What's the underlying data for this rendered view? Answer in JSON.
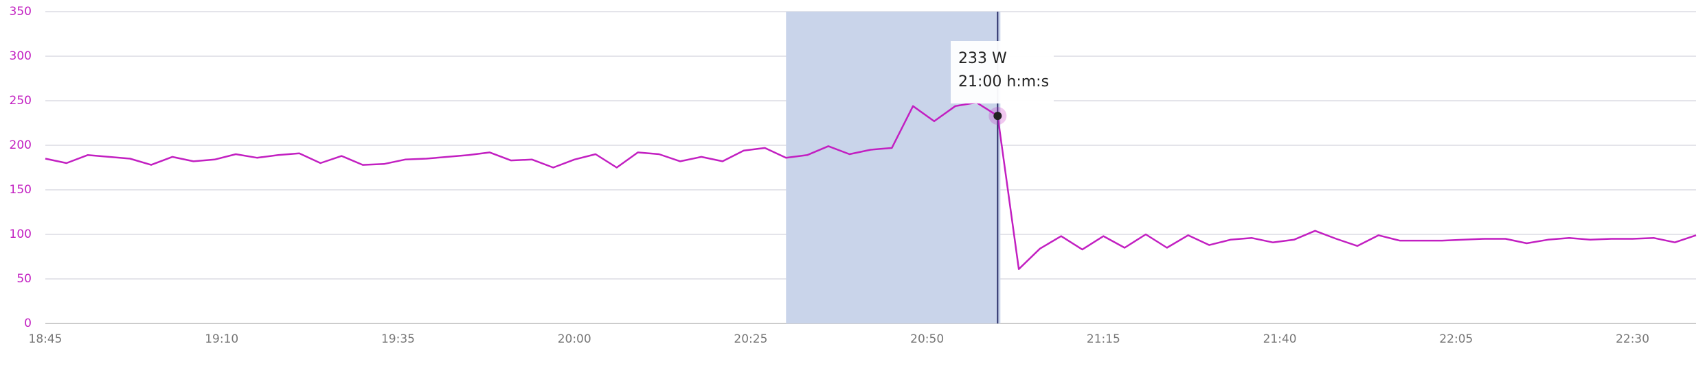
{
  "chart_data": {
    "type": "line",
    "x": [
      "18:45",
      "18:48",
      "18:51",
      "18:54",
      "18:57",
      "19:00",
      "19:03",
      "19:06",
      "19:09",
      "19:12",
      "19:15",
      "19:18",
      "19:21",
      "19:24",
      "19:27",
      "19:30",
      "19:33",
      "19:36",
      "19:39",
      "19:42",
      "19:45",
      "19:48",
      "19:51",
      "19:54",
      "19:57",
      "20:00",
      "20:03",
      "20:06",
      "20:09",
      "20:12",
      "20:15",
      "20:18",
      "20:21",
      "20:24",
      "20:27",
      "20:30",
      "20:33",
      "20:36",
      "20:39",
      "20:42",
      "20:45",
      "20:48",
      "20:51",
      "20:54",
      "20:57",
      "21:00",
      "21:03",
      "21:06",
      "21:09",
      "21:12",
      "21:15",
      "21:18",
      "21:21",
      "21:24",
      "21:27",
      "21:30",
      "21:33",
      "21:36",
      "21:39",
      "21:42",
      "21:45",
      "21:48",
      "21:51",
      "21:54",
      "21:57",
      "22:00",
      "22:03",
      "22:06",
      "22:09",
      "22:12",
      "22:15",
      "22:18",
      "22:21",
      "22:24",
      "22:27",
      "22:30",
      "22:33",
      "22:36",
      "22:39"
    ],
    "series": [
      {
        "name": "W",
        "color": "#c21fc1",
        "values": [
          185,
          180,
          189,
          187,
          185,
          178,
          187,
          182,
          184,
          190,
          186,
          189,
          191,
          180,
          188,
          178,
          179,
          184,
          185,
          187,
          189,
          192,
          183,
          184,
          175,
          184,
          190,
          175,
          192,
          190,
          182,
          187,
          182,
          194,
          197,
          186,
          189,
          199,
          190,
          195,
          197,
          244,
          227,
          244,
          248,
          233,
          61,
          84,
          98,
          83,
          98,
          85,
          100,
          85,
          99,
          88,
          94,
          96,
          91,
          94,
          104,
          95,
          87,
          99,
          93,
          93,
          93,
          94,
          95,
          95,
          90,
          94,
          96,
          94,
          95,
          95,
          96,
          91,
          99
        ]
      }
    ],
    "xlim": [
      "18:45",
      "22:39"
    ],
    "xticks": [
      "18:45",
      "19:10",
      "19:35",
      "20:00",
      "20:25",
      "20:50",
      "21:15",
      "21:40",
      "22:05",
      "22:30"
    ],
    "ylim": [
      0,
      350
    ],
    "yticks": [
      0,
      50,
      100,
      150,
      200,
      250,
      300,
      350
    ],
    "grid": true,
    "selection": [
      "20:30",
      "21:00"
    ],
    "tooltip": {
      "index": 45,
      "lines": [
        "233 W",
        "21:00 h:m:s"
      ]
    }
  }
}
